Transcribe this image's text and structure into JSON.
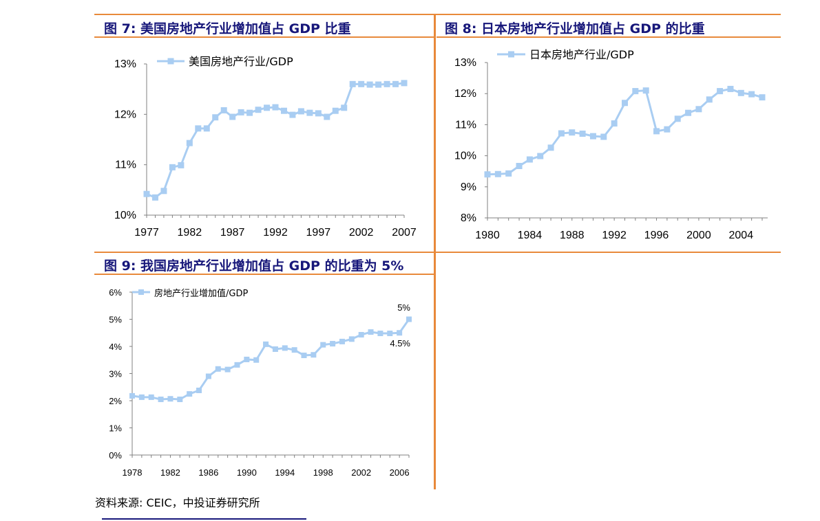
{
  "figure7": {
    "title": "图 7: 美国房地产行业增加值占 GDP 比重"
  },
  "figure8": {
    "title": "图 8: 日本房地产行业增加值占 GDP 的比重"
  },
  "figure9": {
    "title": "图 9: 我国房地产行业增加值占 GDP 的比重为 5%"
  },
  "source": "资料来源: CEIC，中投证券研究所",
  "colors": {
    "series": "#a9cdf2",
    "title": "#17177a",
    "rule": "#e8893a"
  },
  "chart_data": [
    {
      "id": "us",
      "type": "line",
      "ylabel_ticks": [
        "10%",
        "11%",
        "12%",
        "13%"
      ],
      "ylim": [
        10,
        13
      ],
      "xlim": [
        1977,
        2007
      ],
      "x_tick_labels": [
        "1977",
        "1982",
        "1987",
        "1992",
        "1997",
        "2002",
        "2007"
      ],
      "series": [
        {
          "name": "美国房地产行业/GDP",
          "x": [
            1977,
            1978,
            1979,
            1980,
            1981,
            1982,
            1983,
            1984,
            1985,
            1986,
            1987,
            1988,
            1989,
            1990,
            1991,
            1992,
            1993,
            1994,
            1995,
            1996,
            1997,
            1998,
            1999,
            2000,
            2001,
            2002,
            2003,
            2004,
            2005,
            2006,
            2007
          ],
          "values": [
            10.42,
            10.35,
            10.48,
            10.95,
            10.99,
            11.43,
            11.72,
            11.72,
            11.94,
            12.08,
            11.95,
            12.04,
            12.03,
            12.09,
            12.13,
            12.14,
            12.07,
            11.99,
            12.06,
            12.03,
            12.02,
            11.95,
            12.07,
            12.13,
            12.6,
            12.6,
            12.59,
            12.59,
            12.6,
            12.6,
            12.62
          ]
        }
      ],
      "legend_position": "top-left",
      "grid": false
    },
    {
      "id": "japan",
      "type": "line",
      "ylabel_ticks": [
        "8%",
        "9%",
        "10%",
        "11%",
        "12%",
        "13%"
      ],
      "ylim": [
        8,
        13
      ],
      "xlim": [
        1980,
        2006
      ],
      "x_tick_labels": [
        "1980",
        "1984",
        "1988",
        "1992",
        "1996",
        "2000",
        "2004"
      ],
      "series": [
        {
          "name": "日本房地产行业/GDP",
          "x": [
            1980,
            1981,
            1982,
            1983,
            1984,
            1985,
            1986,
            1987,
            1988,
            1989,
            1990,
            1991,
            1992,
            1993,
            1994,
            1995,
            1996,
            1997,
            1998,
            1999,
            2000,
            2001,
            2002,
            2003,
            2004,
            2005,
            2006
          ],
          "values": [
            9.4,
            9.41,
            9.43,
            9.67,
            9.88,
            9.99,
            10.26,
            10.72,
            10.75,
            10.71,
            10.63,
            10.61,
            11.04,
            11.7,
            12.08,
            12.1,
            10.79,
            10.85,
            11.19,
            11.38,
            11.5,
            11.81,
            12.08,
            12.15,
            12.02,
            11.98,
            11.88
          ]
        }
      ],
      "legend_position": "top-left",
      "grid": false
    },
    {
      "id": "china",
      "type": "line",
      "ylabel_ticks": [
        "0%",
        "1%",
        "2%",
        "3%",
        "4%",
        "5%",
        "6%"
      ],
      "ylim": [
        0,
        6
      ],
      "xlim": [
        1978,
        2007
      ],
      "x_tick_labels": [
        "1978",
        "1982",
        "1986",
        "1990",
        "1994",
        "1998",
        "2002",
        "2006"
      ],
      "series": [
        {
          "name": "房地产行业增加值/GDP",
          "x": [
            1978,
            1979,
            1980,
            1981,
            1982,
            1983,
            1984,
            1985,
            1986,
            1987,
            1988,
            1989,
            1990,
            1991,
            1992,
            1993,
            1994,
            1995,
            1996,
            1997,
            1998,
            1999,
            2000,
            2001,
            2002,
            2003,
            2004,
            2005,
            2006,
            2007
          ],
          "values": [
            2.18,
            2.13,
            2.13,
            2.05,
            2.07,
            2.05,
            2.25,
            2.38,
            2.9,
            3.17,
            3.15,
            3.32,
            3.52,
            3.5,
            4.08,
            3.9,
            3.94,
            3.87,
            3.67,
            3.69,
            4.06,
            4.1,
            4.18,
            4.27,
            4.43,
            4.53,
            4.48,
            4.48,
            4.5,
            5.0
          ]
        }
      ],
      "annotations": [
        "5%",
        "4.5%"
      ],
      "legend_position": "top-left",
      "grid": false
    }
  ]
}
